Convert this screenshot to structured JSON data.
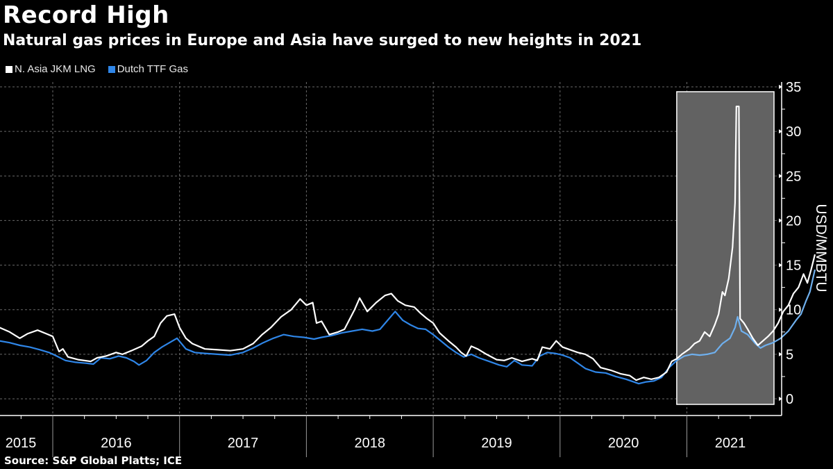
{
  "header": {
    "title": "Record High",
    "subtitle": "Natural gas prices in Europe and Asia have surged to new heights in 2021"
  },
  "footer": {
    "source": "Source: S&P Global Platts; ICE"
  },
  "colors": {
    "background": "#000000",
    "jkm": "#ffffff",
    "ttf": "#2f86e8",
    "ttf_highlight": "#6fb0ee",
    "highlight_box": "#626262",
    "grid": "#6a6a6a"
  },
  "chart_data": {
    "type": "line",
    "title": "Record High",
    "subtitle": "Natural gas prices in Europe and Asia have surged to new heights in 2021",
    "xlabel": "",
    "ylabel": "USD/MMBTU",
    "ylim": [
      0,
      35
    ],
    "xlim": [
      2015.58,
      2021.8
    ],
    "y_ticks": [
      0,
      5,
      10,
      15,
      20,
      25,
      30,
      35
    ],
    "x_tick_labels": [
      "2015",
      "2016",
      "2017",
      "2018",
      "2019",
      "2020",
      "2021"
    ],
    "grid": true,
    "legend_position": "top-left",
    "highlight_region": {
      "x_start": 2020.92,
      "x_end": 2021.7,
      "label": ""
    },
    "series": [
      {
        "name": "N. Asia JKM LNG",
        "color": "#ffffff",
        "points": [
          [
            2015.58,
            8.0
          ],
          [
            2015.66,
            7.5
          ],
          [
            2015.74,
            6.8
          ],
          [
            2015.8,
            7.3
          ],
          [
            2015.88,
            7.7
          ],
          [
            2015.95,
            7.3
          ],
          [
            2016.0,
            7.0
          ],
          [
            2016.05,
            5.3
          ],
          [
            2016.08,
            5.6
          ],
          [
            2016.12,
            4.7
          ],
          [
            2016.2,
            4.4
          ],
          [
            2016.3,
            4.2
          ],
          [
            2016.35,
            4.6
          ],
          [
            2016.42,
            4.8
          ],
          [
            2016.5,
            5.2
          ],
          [
            2016.55,
            5.0
          ],
          [
            2016.62,
            5.4
          ],
          [
            2016.7,
            5.9
          ],
          [
            2016.75,
            6.5
          ],
          [
            2016.8,
            7.0
          ],
          [
            2016.85,
            8.5
          ],
          [
            2016.9,
            9.3
          ],
          [
            2016.96,
            9.5
          ],
          [
            2017.0,
            8.0
          ],
          [
            2017.05,
            6.8
          ],
          [
            2017.1,
            6.2
          ],
          [
            2017.2,
            5.6
          ],
          [
            2017.3,
            5.5
          ],
          [
            2017.4,
            5.4
          ],
          [
            2017.5,
            5.6
          ],
          [
            2017.58,
            6.2
          ],
          [
            2017.65,
            7.2
          ],
          [
            2017.72,
            8.0
          ],
          [
            2017.8,
            9.2
          ],
          [
            2017.88,
            10.0
          ],
          [
            2017.95,
            11.2
          ],
          [
            2018.0,
            10.5
          ],
          [
            2018.05,
            10.8
          ],
          [
            2018.08,
            8.5
          ],
          [
            2018.12,
            8.7
          ],
          [
            2018.18,
            7.2
          ],
          [
            2018.25,
            7.5
          ],
          [
            2018.3,
            7.8
          ],
          [
            2018.38,
            10.0
          ],
          [
            2018.42,
            11.3
          ],
          [
            2018.48,
            9.8
          ],
          [
            2018.55,
            10.8
          ],
          [
            2018.62,
            11.6
          ],
          [
            2018.67,
            11.8
          ],
          [
            2018.72,
            11.0
          ],
          [
            2018.78,
            10.5
          ],
          [
            2018.85,
            10.3
          ],
          [
            2018.9,
            9.6
          ],
          [
            2018.95,
            9.0
          ],
          [
            2019.0,
            8.5
          ],
          [
            2019.05,
            7.4
          ],
          [
            2019.12,
            6.5
          ],
          [
            2019.18,
            5.8
          ],
          [
            2019.22,
            5.2
          ],
          [
            2019.26,
            4.8
          ],
          [
            2019.3,
            5.9
          ],
          [
            2019.35,
            5.6
          ],
          [
            2019.42,
            5.0
          ],
          [
            2019.5,
            4.4
          ],
          [
            2019.56,
            4.3
          ],
          [
            2019.62,
            4.6
          ],
          [
            2019.7,
            4.2
          ],
          [
            2019.78,
            4.5
          ],
          [
            2019.82,
            4.3
          ],
          [
            2019.86,
            5.8
          ],
          [
            2019.92,
            5.6
          ],
          [
            2019.97,
            6.5
          ],
          [
            2020.02,
            5.8
          ],
          [
            2020.08,
            5.5
          ],
          [
            2020.14,
            5.2
          ],
          [
            2020.2,
            5.0
          ],
          [
            2020.26,
            4.5
          ],
          [
            2020.32,
            3.5
          ],
          [
            2020.4,
            3.2
          ],
          [
            2020.48,
            2.8
          ],
          [
            2020.55,
            2.6
          ],
          [
            2020.6,
            2.1
          ],
          [
            2020.66,
            2.4
          ],
          [
            2020.72,
            2.2
          ],
          [
            2020.78,
            2.4
          ],
          [
            2020.84,
            3.0
          ],
          [
            2020.88,
            4.2
          ],
          [
            2020.92,
            4.5
          ],
          [
            2020.96,
            5.0
          ],
          [
            2021.02,
            5.6
          ],
          [
            2021.06,
            6.2
          ],
          [
            2021.1,
            6.5
          ],
          [
            2021.14,
            7.5
          ],
          [
            2021.18,
            7.0
          ],
          [
            2021.22,
            8.3
          ],
          [
            2021.25,
            9.5
          ],
          [
            2021.28,
            12.0
          ],
          [
            2021.3,
            11.6
          ],
          [
            2021.33,
            13.5
          ],
          [
            2021.36,
            17.0
          ],
          [
            2021.38,
            22.0
          ],
          [
            2021.39,
            32.8
          ],
          [
            2021.41,
            32.8
          ],
          [
            2021.42,
            9.0
          ],
          [
            2021.45,
            8.5
          ],
          [
            2021.48,
            7.8
          ],
          [
            2021.52,
            6.8
          ],
          [
            2021.56,
            6.0
          ],
          [
            2021.6,
            6.5
          ],
          [
            2021.64,
            7.0
          ],
          [
            2021.68,
            7.6
          ],
          [
            2021.72,
            8.5
          ],
          [
            2021.76,
            9.8
          ],
          [
            2021.8,
            10.5
          ],
          [
            2021.84,
            11.8
          ],
          [
            2021.88,
            12.5
          ],
          [
            2021.92,
            14.0
          ],
          [
            2021.95,
            13.0
          ],
          [
            2021.98,
            14.5
          ],
          [
            2022.01,
            16.2
          ]
        ]
      },
      {
        "name": "Dutch TTF Gas",
        "color": "#2f86e8",
        "points": [
          [
            2015.58,
            6.5
          ],
          [
            2015.66,
            6.3
          ],
          [
            2015.74,
            6.0
          ],
          [
            2015.82,
            5.8
          ],
          [
            2015.9,
            5.5
          ],
          [
            2015.97,
            5.2
          ],
          [
            2016.03,
            4.8
          ],
          [
            2016.1,
            4.3
          ],
          [
            2016.18,
            4.1
          ],
          [
            2016.26,
            4.0
          ],
          [
            2016.32,
            3.9
          ],
          [
            2016.38,
            4.6
          ],
          [
            2016.45,
            4.5
          ],
          [
            2016.52,
            4.8
          ],
          [
            2016.58,
            4.6
          ],
          [
            2016.64,
            4.2
          ],
          [
            2016.68,
            3.8
          ],
          [
            2016.74,
            4.3
          ],
          [
            2016.8,
            5.2
          ],
          [
            2016.86,
            5.8
          ],
          [
            2016.92,
            6.3
          ],
          [
            2016.98,
            6.8
          ],
          [
            2017.05,
            5.6
          ],
          [
            2017.12,
            5.2
          ],
          [
            2017.2,
            5.1
          ],
          [
            2017.3,
            5.0
          ],
          [
            2017.4,
            4.9
          ],
          [
            2017.5,
            5.2
          ],
          [
            2017.58,
            5.7
          ],
          [
            2017.66,
            6.3
          ],
          [
            2017.74,
            6.8
          ],
          [
            2017.82,
            7.2
          ],
          [
            2017.9,
            7.0
          ],
          [
            2017.98,
            6.9
          ],
          [
            2018.06,
            6.7
          ],
          [
            2018.12,
            6.9
          ],
          [
            2018.2,
            7.1
          ],
          [
            2018.28,
            7.4
          ],
          [
            2018.36,
            7.6
          ],
          [
            2018.44,
            7.8
          ],
          [
            2018.52,
            7.6
          ],
          [
            2018.58,
            7.8
          ],
          [
            2018.64,
            8.8
          ],
          [
            2018.7,
            9.8
          ],
          [
            2018.76,
            8.8
          ],
          [
            2018.82,
            8.3
          ],
          [
            2018.88,
            7.9
          ],
          [
            2018.94,
            7.8
          ],
          [
            2019.0,
            7.2
          ],
          [
            2019.06,
            6.5
          ],
          [
            2019.12,
            5.8
          ],
          [
            2019.18,
            5.2
          ],
          [
            2019.24,
            4.7
          ],
          [
            2019.3,
            5.0
          ],
          [
            2019.36,
            4.6
          ],
          [
            2019.44,
            4.2
          ],
          [
            2019.52,
            3.8
          ],
          [
            2019.58,
            3.6
          ],
          [
            2019.64,
            4.3
          ],
          [
            2019.7,
            3.8
          ],
          [
            2019.78,
            3.7
          ],
          [
            2019.84,
            4.8
          ],
          [
            2019.9,
            5.2
          ],
          [
            2019.96,
            5.1
          ],
          [
            2020.02,
            4.9
          ],
          [
            2020.08,
            4.6
          ],
          [
            2020.14,
            4.0
          ],
          [
            2020.2,
            3.4
          ],
          [
            2020.28,
            3.0
          ],
          [
            2020.36,
            2.9
          ],
          [
            2020.44,
            2.5
          ],
          [
            2020.52,
            2.2
          ],
          [
            2020.58,
            1.9
          ],
          [
            2020.62,
            1.7
          ],
          [
            2020.68,
            1.9
          ],
          [
            2020.74,
            2.0
          ],
          [
            2020.8,
            2.4
          ],
          [
            2020.86,
            3.5
          ],
          [
            2020.92,
            4.3
          ],
          [
            2020.98,
            4.8
          ],
          [
            2021.04,
            5.0
          ],
          [
            2021.1,
            4.9
          ],
          [
            2021.16,
            5.0
          ],
          [
            2021.22,
            5.2
          ],
          [
            2021.28,
            6.2
          ],
          [
            2021.34,
            6.8
          ],
          [
            2021.38,
            8.0
          ],
          [
            2021.4,
            9.2
          ],
          [
            2021.43,
            7.6
          ],
          [
            2021.48,
            7.2
          ],
          [
            2021.54,
            6.2
          ],
          [
            2021.58,
            5.7
          ],
          [
            2021.62,
            6.0
          ],
          [
            2021.68,
            6.3
          ],
          [
            2021.74,
            6.8
          ],
          [
            2021.8,
            7.6
          ],
          [
            2021.86,
            8.8
          ],
          [
            2021.9,
            9.5
          ],
          [
            2021.94,
            11.0
          ],
          [
            2021.97,
            12.0
          ],
          [
            2022.01,
            14.5
          ]
        ]
      }
    ]
  }
}
